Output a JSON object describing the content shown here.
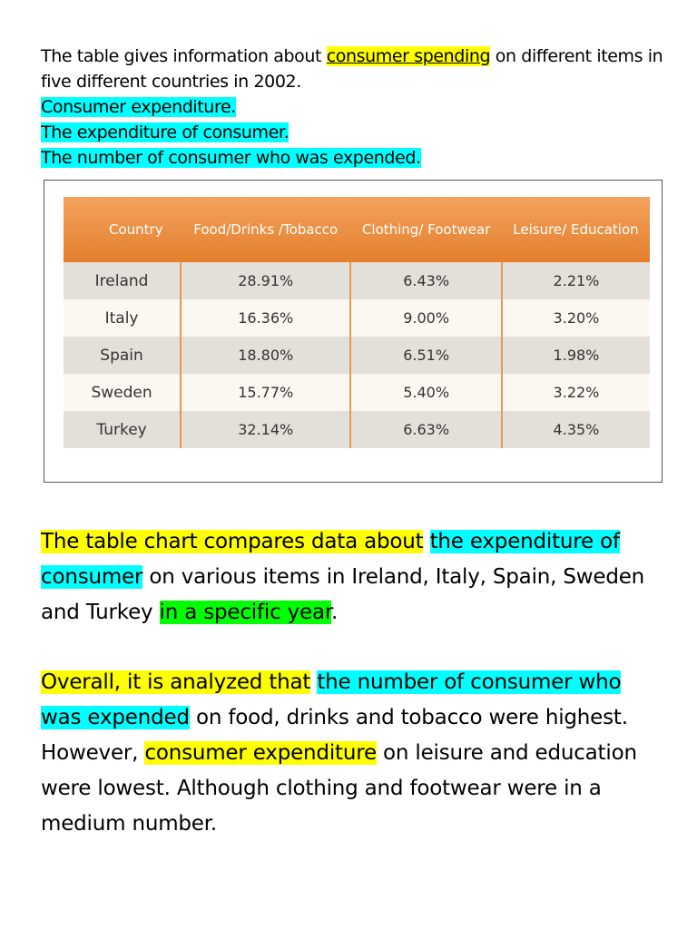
{
  "intro": {
    "line1_before": "The table gives information about ",
    "line1_highlight": "consumer spending",
    "line1_after": " on different items in five different countries in 2002.",
    "phrases": [
      "Consumer expenditure.",
      "The expenditure of consumer.",
      "The number of consumer who was expended."
    ]
  },
  "table": {
    "headers": [
      "Country",
      "Food/Drinks /Tobacco",
      "Clothing/ Footwear",
      "Leisure/ Education"
    ],
    "rows": [
      [
        "Ireland",
        "28.91%",
        "6.43%",
        "2.21%"
      ],
      [
        "Italy",
        "16.36%",
        "9.00%",
        "3.20%"
      ],
      [
        "Spain",
        "18.80%",
        "6.51%",
        "1.98%"
      ],
      [
        "Sweden",
        "15.77%",
        "5.40%",
        "3.22%"
      ],
      [
        "Turkey",
        "32.14%",
        "6.63%",
        "4.35%"
      ]
    ],
    "colors": {
      "header": "#e8863a",
      "row_dark": "#e3e0d9",
      "row_light": "#faf8f1",
      "divider": "#e79a4f"
    }
  },
  "paragraph1": {
    "s1": "The table chart compares data about",
    "s2": " ",
    "s3": "the expenditure of consumer",
    "s4": " on various items in Ireland, Italy, Spain, Sweden and Turkey ",
    "s5": "in a specific year",
    "s6": "."
  },
  "paragraph2": {
    "s1": "Overall, it is analyzed that",
    "s2": " ",
    "s3": "the number of consumer who was expended",
    "s4": " on food, drinks and tobacco were highest. However, ",
    "s5": "consumer expenditure",
    "s6": " on leisure and education were lowest. Although clothing and footwear were in a medium number."
  },
  "highlight_colors": {
    "yellow": "#ffff00",
    "cyan": "#00ffff",
    "green": "#00ff00"
  }
}
